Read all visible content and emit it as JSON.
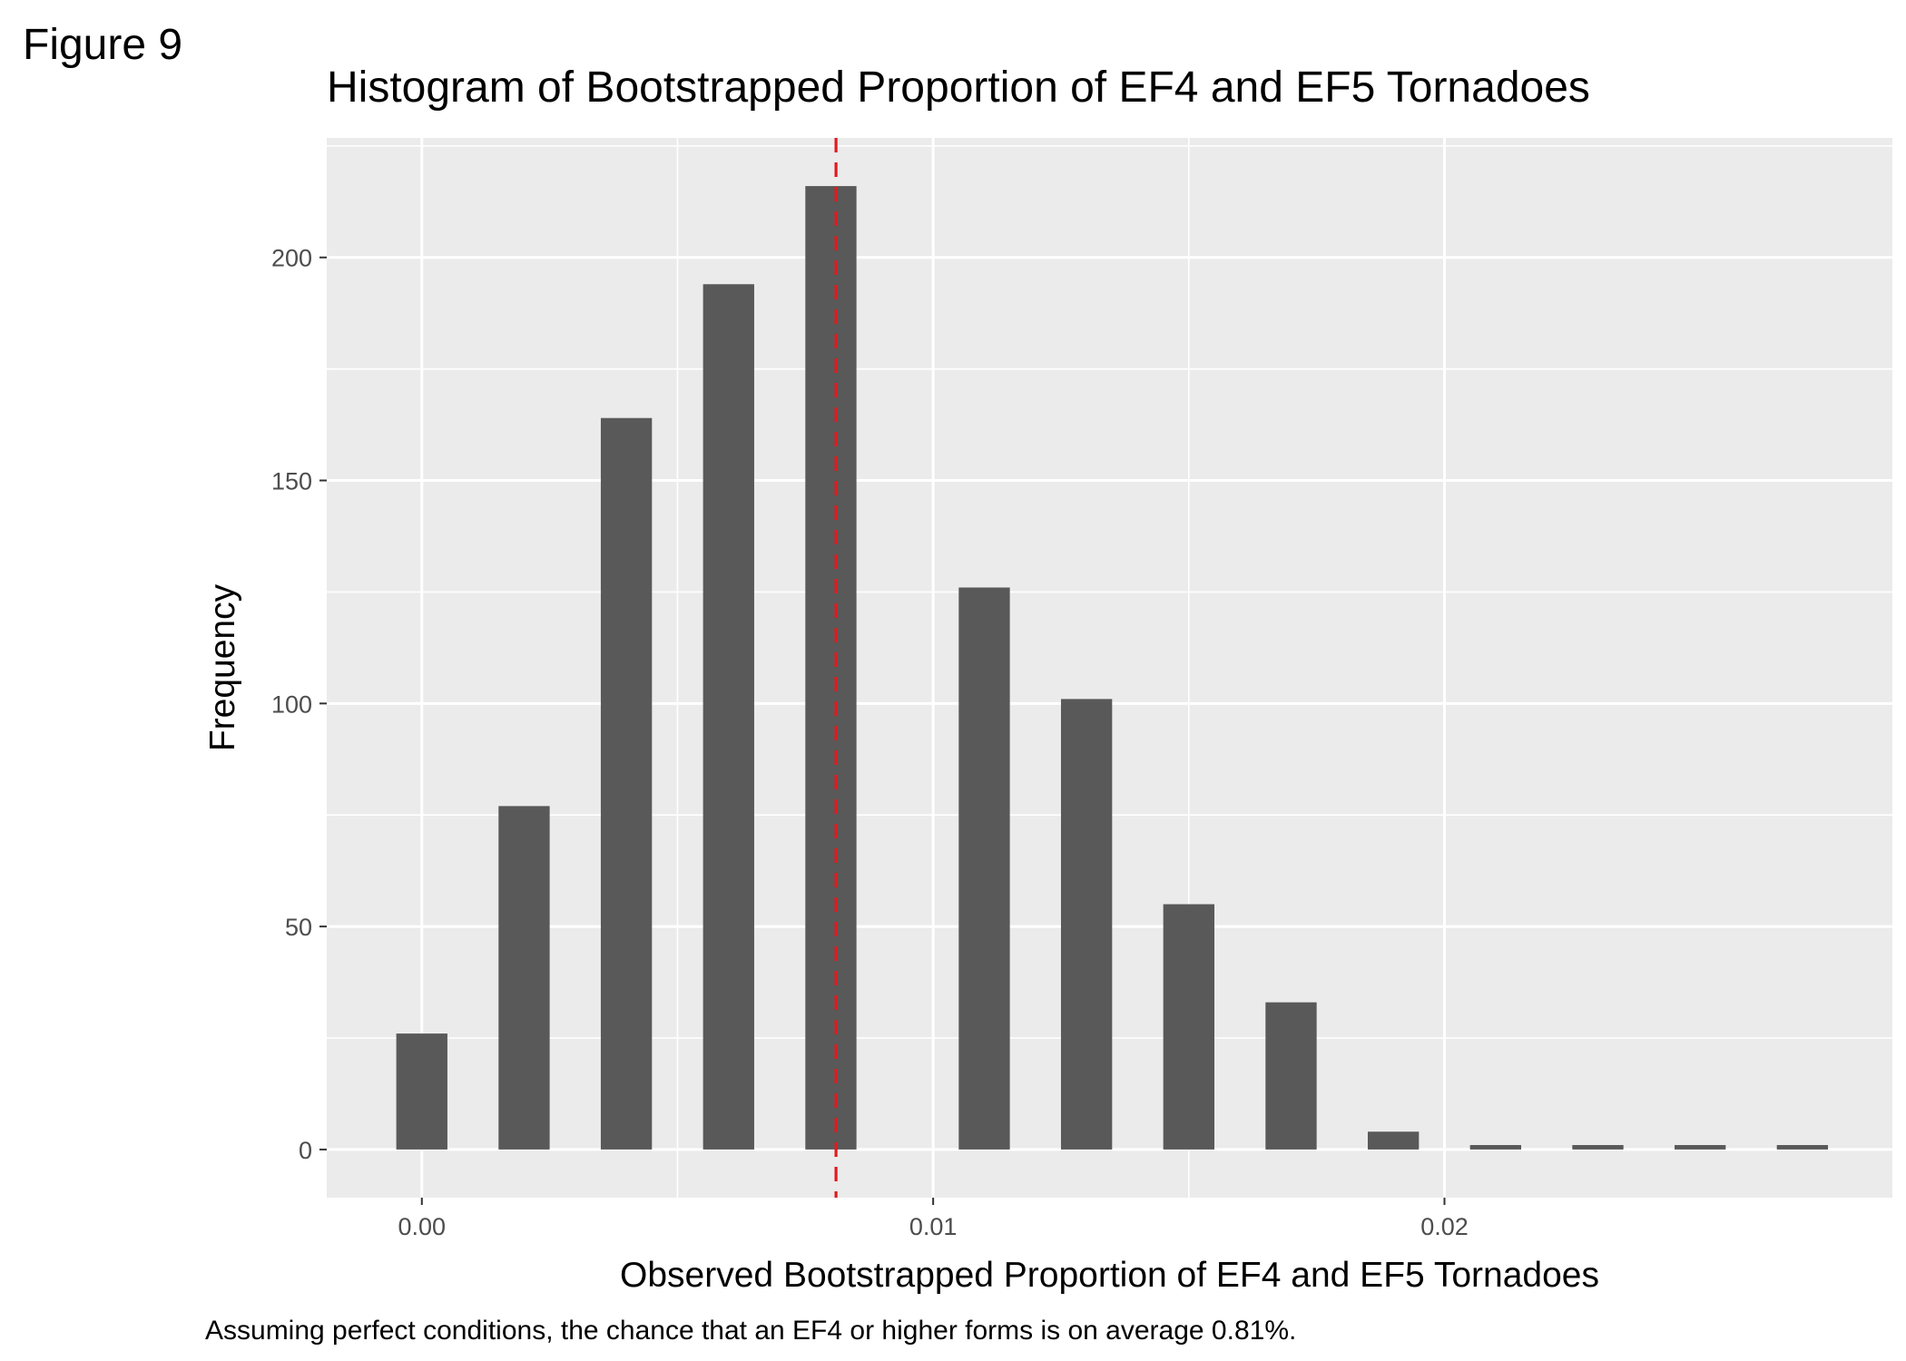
{
  "figure_label": "Figure 9",
  "chart_data": {
    "type": "bar",
    "title": "Histogram of Bootstrapped Proportion of EF4 and EF5 Tornadoes",
    "xlabel": "Observed Bootstrapped Proportion of EF4 and EF5 Tornadoes",
    "ylabel": "Frequency",
    "caption": "Assuming perfect conditions, the chance that an EF4 or higher forms is on average 0.81%.",
    "xlim": [
      -0.00186,
      0.02876
    ],
    "ylim": [
      -10.8,
      226.8
    ],
    "x_ticks": [
      {
        "value": 0.0,
        "label": "0.00"
      },
      {
        "value": 0.01,
        "label": "0.01"
      },
      {
        "value": 0.02,
        "label": "0.02"
      }
    ],
    "y_ticks": [
      {
        "value": 0,
        "label": "0"
      },
      {
        "value": 50,
        "label": "50"
      },
      {
        "value": 100,
        "label": "100"
      },
      {
        "value": 150,
        "label": "150"
      },
      {
        "value": 200,
        "label": "200"
      }
    ],
    "bar_width": 0.001,
    "bars": [
      {
        "x": 0.0,
        "count": 26
      },
      {
        "x": 0.002,
        "count": 77
      },
      {
        "x": 0.004,
        "count": 164
      },
      {
        "x": 0.006,
        "count": 194
      },
      {
        "x": 0.008,
        "count": 216
      },
      {
        "x": 0.011,
        "count": 126
      },
      {
        "x": 0.013,
        "count": 101
      },
      {
        "x": 0.015,
        "count": 55
      },
      {
        "x": 0.017,
        "count": 33
      },
      {
        "x": 0.019,
        "count": 4
      },
      {
        "x": 0.021,
        "count": 1
      },
      {
        "x": 0.023,
        "count": 1
      },
      {
        "x": 0.025,
        "count": 1
      },
      {
        "x": 0.027,
        "count": 1
      }
    ],
    "vline": {
      "x": 0.0081,
      "color": "#e31a1c",
      "style": "dashed"
    },
    "colors": {
      "panel": "#ebebeb",
      "grid": "#ffffff",
      "bar": "#595959"
    }
  }
}
